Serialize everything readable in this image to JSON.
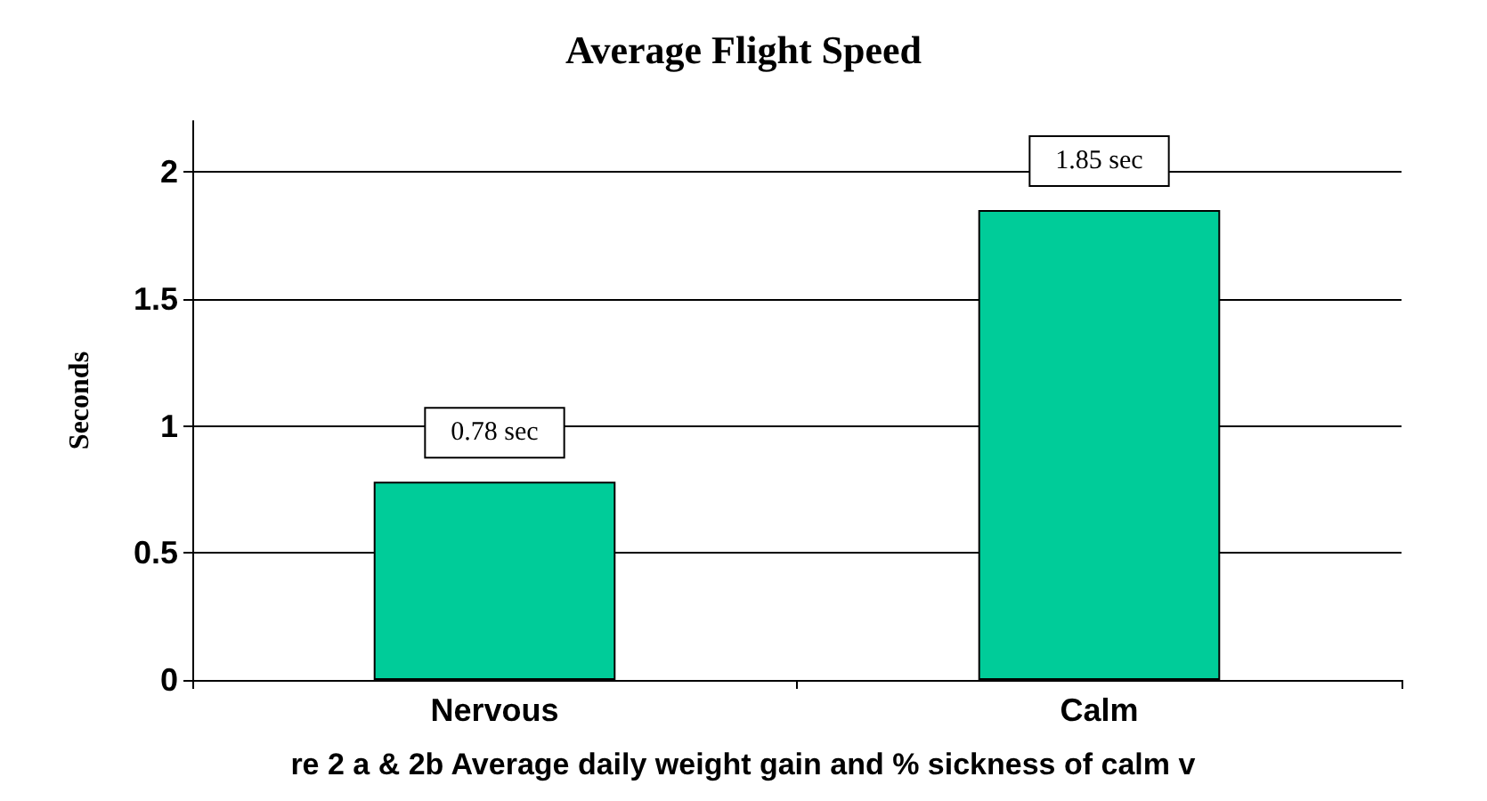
{
  "chart_data": {
    "type": "bar",
    "title": "Average Flight Speed",
    "ylabel": "Seconds",
    "categories": [
      "Nervous",
      "Calm"
    ],
    "values": [
      0.78,
      1.85
    ],
    "value_labels": [
      "0.78 sec",
      "1.85 sec"
    ],
    "color": "#00cc99",
    "ylim": [
      0,
      2.2
    ],
    "yticks": [
      0,
      0.5,
      1,
      1.5,
      2
    ],
    "grid": "y",
    "annotations": [
      "re 2 a & 2b Average daily weight gain and % sickness of calm v"
    ]
  }
}
